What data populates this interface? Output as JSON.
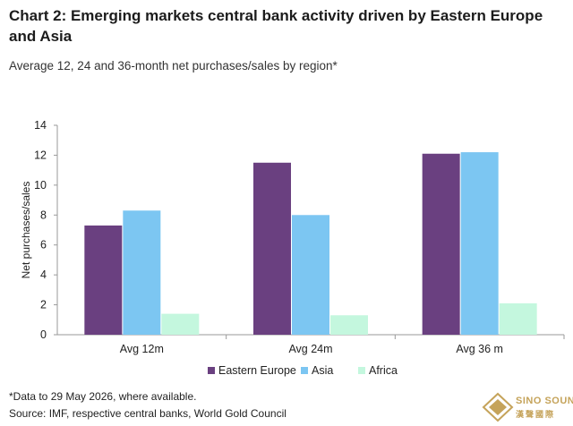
{
  "page": {
    "title": "Chart 2: Emerging markets central bank activity driven by Eastern Europe and Asia",
    "subtitle": "Average 12, 24 and 36-month net purchases/sales by region*",
    "footnote": "*Data to 29 May 2026, where available.",
    "source": "Source: IMF, respective central banks, World Gold Council",
    "watermark": {
      "icon": "gold-bar-logo-icon",
      "line1": "SINO SOUND",
      "line2": "漢聲國際"
    }
  },
  "chart_data": {
    "type": "bar",
    "categories": [
      "Avg 12m",
      "Avg 24m",
      "Avg 36 m"
    ],
    "series": [
      {
        "name": "Eastern Europe",
        "values": [
          7.3,
          11.5,
          12.1
        ],
        "color": "#6a4080"
      },
      {
        "name": "Asia",
        "values": [
          8.3,
          8.0,
          12.2
        ],
        "color": "#7cc6f2"
      },
      {
        "name": "Africa",
        "values": [
          1.4,
          1.3,
          2.1
        ],
        "color": "#c4f7de"
      }
    ],
    "ylabel": "Net purchases/sales",
    "xlabel": "",
    "ylim": [
      0,
      14
    ],
    "yticks": [
      "0",
      "2",
      "4",
      "6",
      "8",
      "10",
      "12",
      "14"
    ],
    "grid": false,
    "legend": "bottom-center"
  }
}
